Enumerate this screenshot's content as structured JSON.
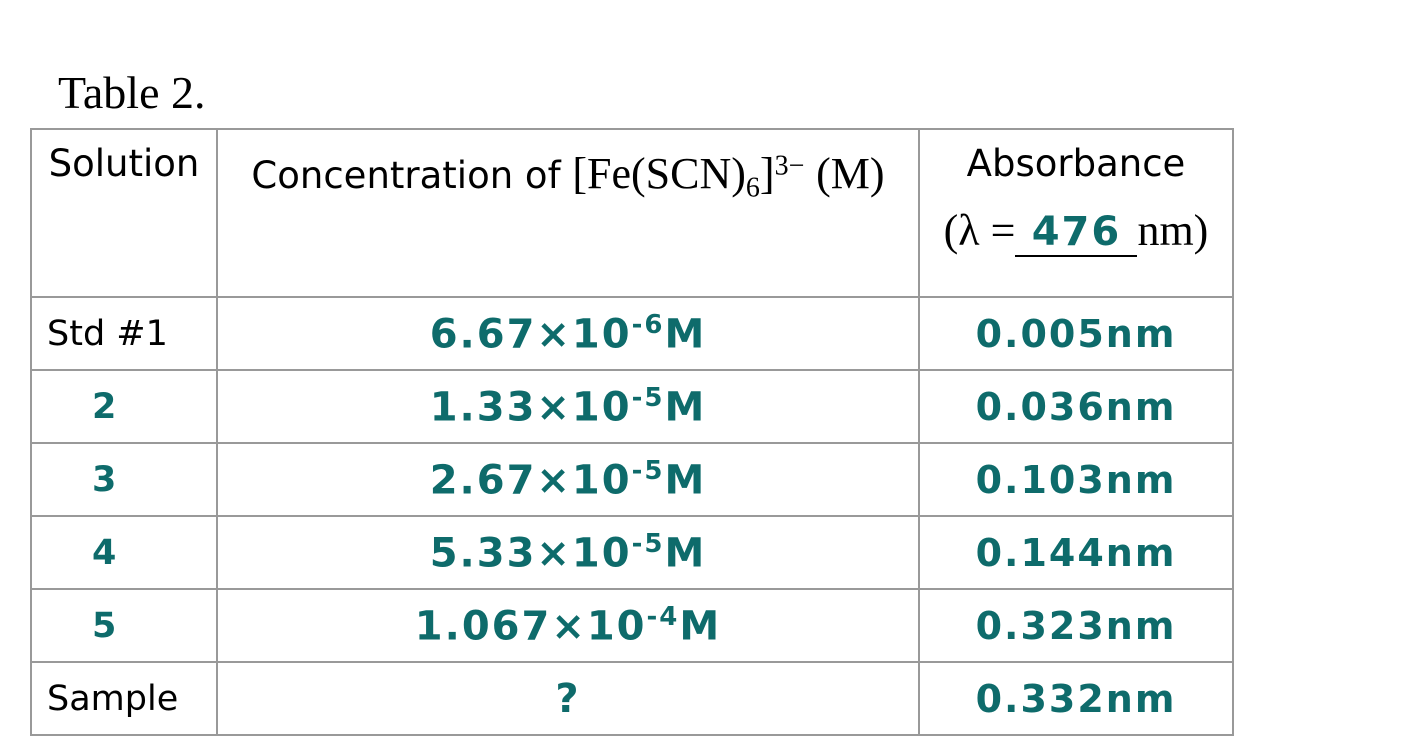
{
  "title": "Table 2.",
  "table": {
    "header": {
      "solution": "Solution",
      "concentration": {
        "label": "Concentration of",
        "species": "[Fe(SCN)",
        "subscript": "6",
        "bracket": "]",
        "charge": "3−",
        "unit": "(M)"
      },
      "absorbance": {
        "label": "Absorbance",
        "prefix": "(λ =",
        "wavelength": "476",
        "unit": "nm)"
      }
    },
    "rows": [
      {
        "solution": "Std #1",
        "concentration": {
          "base": "6.67×10",
          "exponent": "-6",
          "unit": "M"
        },
        "absorbance": "0.005nm"
      },
      {
        "solution": "2",
        "concentration": {
          "base": "1.33×10",
          "exponent": "-5",
          "unit": "M"
        },
        "absorbance": "0.036nm"
      },
      {
        "solution": "3",
        "concentration": {
          "base": "2.67×10",
          "exponent": "-5",
          "unit": "M"
        },
        "absorbance": "0.103nm"
      },
      {
        "solution": "4",
        "concentration": {
          "base": "5.33×10",
          "exponent": "-5",
          "unit": "M"
        },
        "absorbance": "0.144nm"
      },
      {
        "solution": "5",
        "concentration": {
          "base": "1.067×10",
          "exponent": "-4",
          "unit": "M"
        },
        "absorbance": "0.323nm"
      },
      {
        "solution": "Sample",
        "concentration": {
          "base": "?"
        },
        "absorbance": "0.332nm"
      }
    ]
  }
}
